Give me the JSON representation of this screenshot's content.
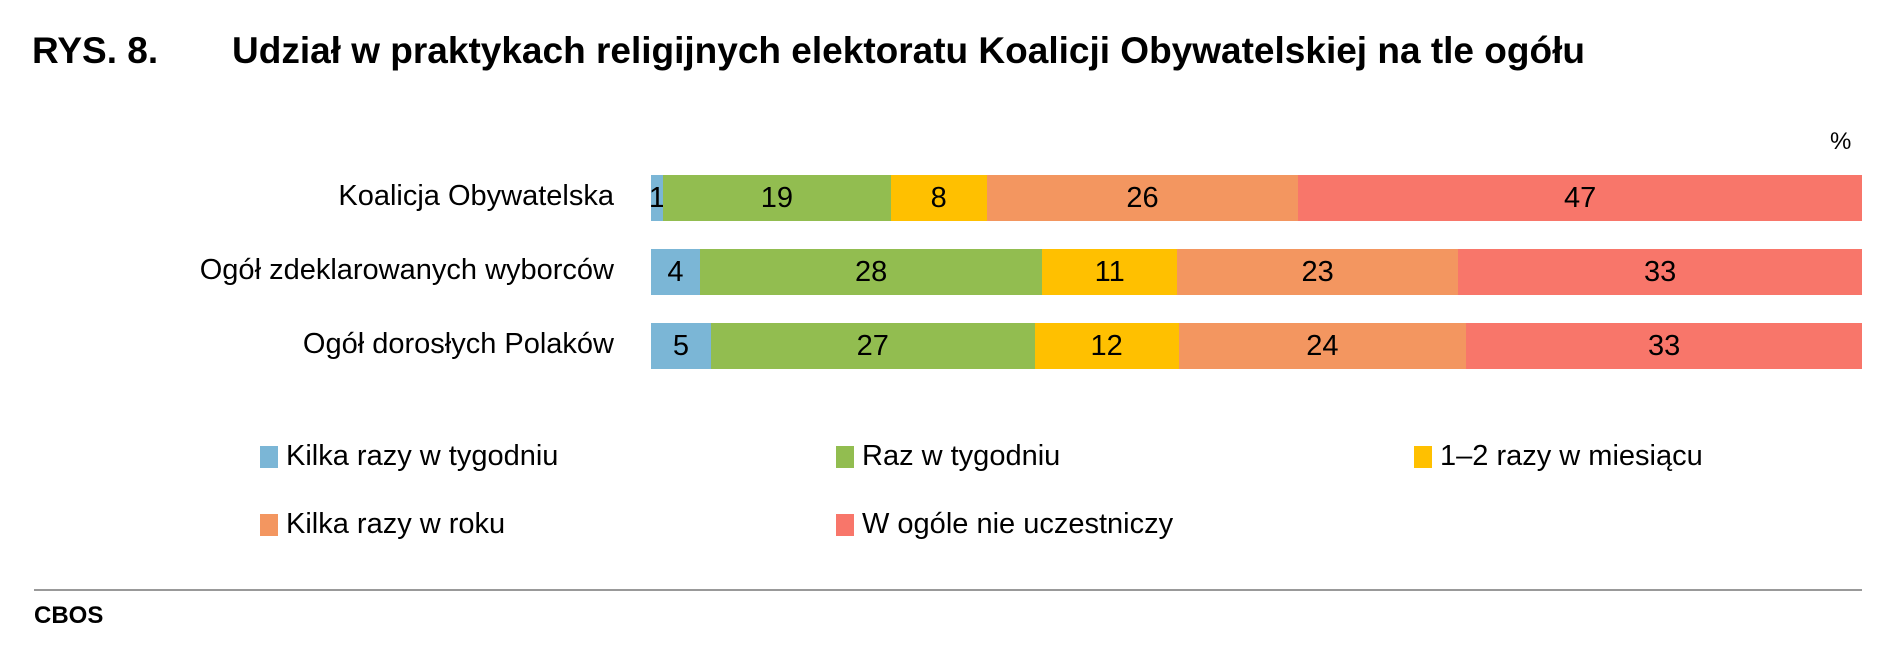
{
  "title_number": "RYS. 8.",
  "title": "Udział w praktykach religijnych elektoratu Koalicji Obywatelskiej na tle ogółu",
  "unit": "%",
  "source": "CBOS",
  "chart_data": {
    "type": "bar",
    "stacked": true,
    "orientation": "horizontal",
    "categories": [
      "Koalicja Obywatelska",
      "Ogół zdeklarowanych wyborców",
      "Ogół dorosłych Polaków"
    ],
    "series": [
      {
        "name": "Kilka razy w tygodniu",
        "color": "#7BB6D6",
        "values": [
          1,
          4,
          5
        ]
      },
      {
        "name": "Raz w tygodniu",
        "color": "#92BD50",
        "values": [
          19,
          28,
          27
        ]
      },
      {
        "name": "1–2 razy w miesiącu",
        "color": "#FFC000",
        "values": [
          8,
          11,
          12
        ]
      },
      {
        "name": "Kilka razy w roku",
        "color": "#F39660",
        "values": [
          26,
          23,
          24
        ]
      },
      {
        "name": "W ogóle nie uczestniczy",
        "color": "#F8766A",
        "values": [
          47,
          33,
          33
        ]
      }
    ],
    "legend": "bottom"
  }
}
